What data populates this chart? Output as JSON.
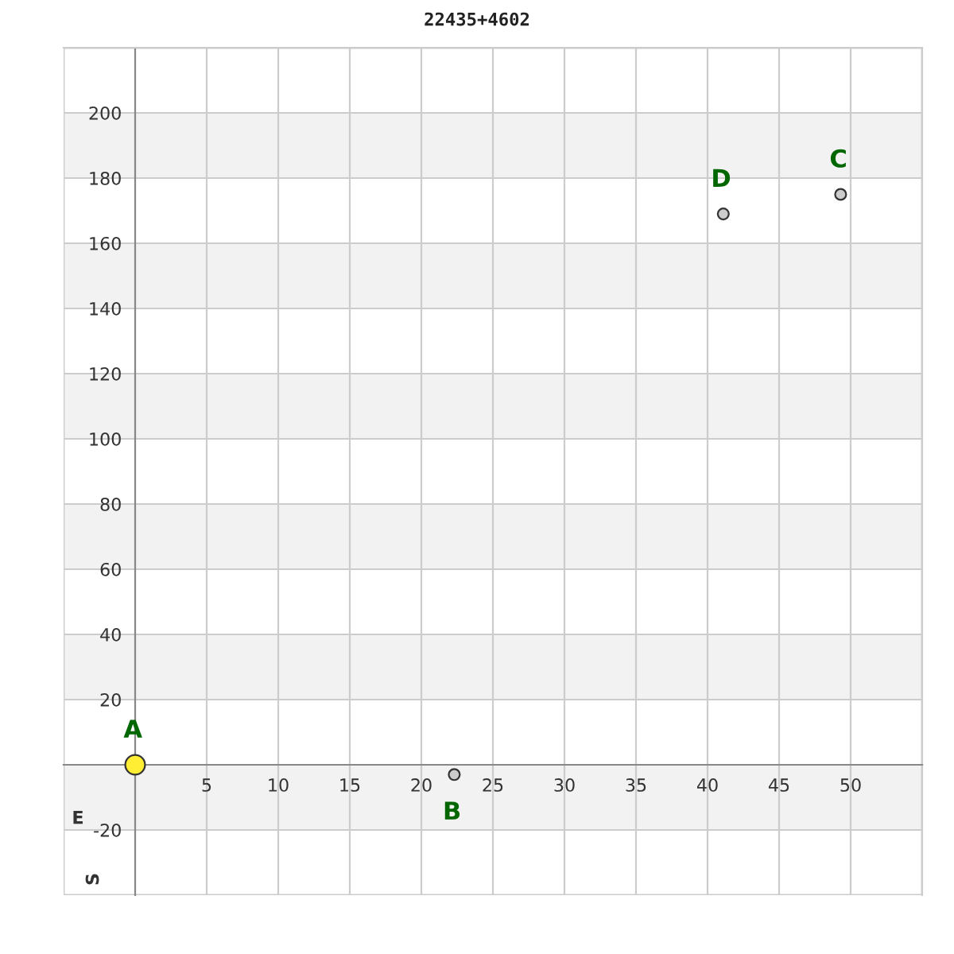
{
  "chart_data": {
    "type": "scatter",
    "title": "22435+4602",
    "xlabel": "E",
    "ylabel": "S",
    "xlim": [
      -5,
      55
    ],
    "ylim": [
      -40,
      220
    ],
    "xticks": [
      5,
      10,
      15,
      20,
      25,
      30,
      35,
      40,
      45,
      50
    ],
    "yticks": [
      -20,
      20,
      40,
      60,
      80,
      100,
      120,
      140,
      160,
      180,
      200
    ],
    "grid": true,
    "marker": "circle",
    "bands": [
      {
        "axis": "y",
        "from": -20,
        "to": 0,
        "color": "#f2f2f2"
      },
      {
        "axis": "y",
        "from": 20,
        "to": 40,
        "color": "#f2f2f2"
      },
      {
        "axis": "y",
        "from": 60,
        "to": 80,
        "color": "#f2f2f2"
      },
      {
        "axis": "y",
        "from": 100,
        "to": 120,
        "color": "#f2f2f2"
      },
      {
        "axis": "y",
        "from": 140,
        "to": 160,
        "color": "#f2f2f2"
      },
      {
        "axis": "y",
        "from": 180,
        "to": 200,
        "color": "#f2f2f2"
      }
    ],
    "series": [
      {
        "color": "#ffee33",
        "x": [
          0
        ],
        "values": [
          0
        ]
      },
      {
        "color": "#cccccc",
        "x": [
          22.3,
          49.3,
          41.1
        ],
        "values": [
          -3,
          175,
          169
        ]
      }
    ],
    "annotations": [
      {
        "text": "A",
        "x": 0,
        "y": 0
      },
      {
        "text": "B",
        "x": 22.3,
        "y": -3
      },
      {
        "text": "C",
        "x": 49.3,
        "y": 175
      },
      {
        "text": "D",
        "x": 41.1,
        "y": 169
      }
    ]
  }
}
